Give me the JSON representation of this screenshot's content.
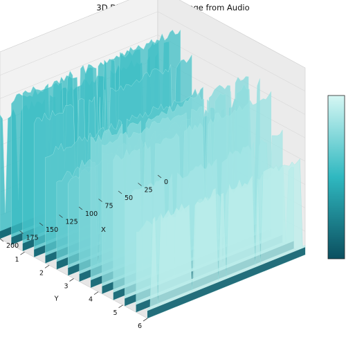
{
  "chart_data": {
    "type": "surface3d",
    "title": "3D Digital Mountain Range from Audio",
    "xlabel": "X",
    "ylabel": "Y",
    "zlabel": "",
    "xlim": [
      0,
      200
    ],
    "ylim": [
      0,
      6
    ],
    "x_ticks": [
      "0",
      "25",
      "50",
      "75",
      "100",
      "125",
      "150",
      "175",
      "200"
    ],
    "y_ticks": [
      "1",
      "2",
      "3",
      "4",
      "5",
      "6"
    ],
    "grid": true,
    "colormap": "teal",
    "colorbar": true,
    "colors": {
      "low": "#0b4f5f",
      "mid": "#29a9b6",
      "high": "#c8f5f2",
      "pane": "#f2f2f2",
      "grid": "#d9d9d9"
    }
  }
}
